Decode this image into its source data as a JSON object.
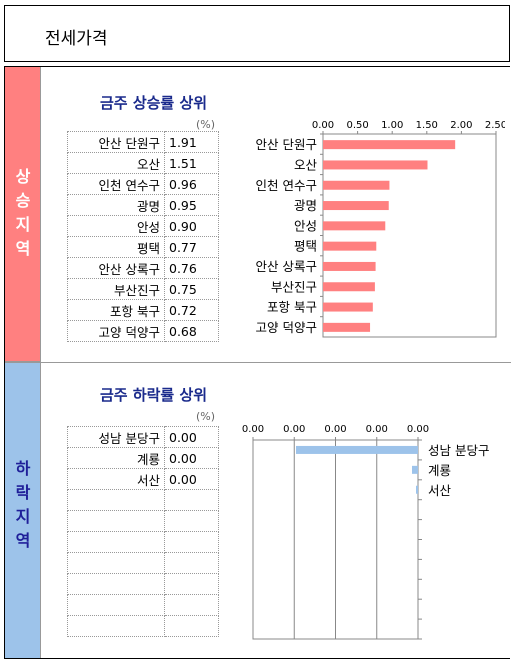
{
  "header": {
    "title": "전세가격"
  },
  "rise": {
    "side_label": "상승지역",
    "title": "금주 상승률 상위",
    "unit": "(%)",
    "rows": [
      {
        "name": "안산 단원구",
        "value": "1.91"
      },
      {
        "name": "오산",
        "value": "1.51"
      },
      {
        "name": "인천 연수구",
        "value": "0.96"
      },
      {
        "name": "광명",
        "value": "0.95"
      },
      {
        "name": "안성",
        "value": "0.90"
      },
      {
        "name": "평택",
        "value": "0.77"
      },
      {
        "name": "안산 상록구",
        "value": "0.76"
      },
      {
        "name": "부산진구",
        "value": "0.75"
      },
      {
        "name": "포항 북구",
        "value": "0.72"
      },
      {
        "name": "고양 덕양구",
        "value": "0.68"
      }
    ]
  },
  "fall": {
    "side_label": "하락지역",
    "title": "금주 하락률 상위",
    "unit": "(%)",
    "rows": [
      {
        "name": "성남 분당구",
        "value": "0.00"
      },
      {
        "name": "계룡",
        "value": "0.00"
      },
      {
        "name": "서산",
        "value": "0.00"
      },
      {
        "name": "",
        "value": ""
      },
      {
        "name": "",
        "value": ""
      },
      {
        "name": "",
        "value": ""
      },
      {
        "name": "",
        "value": ""
      },
      {
        "name": "",
        "value": ""
      },
      {
        "name": "",
        "value": ""
      },
      {
        "name": "",
        "value": ""
      }
    ]
  },
  "chart_data": [
    {
      "type": "bar",
      "orientation": "horizontal",
      "categories": [
        "안산 단원구",
        "오산",
        "인천 연수구",
        "광명",
        "안성",
        "평택",
        "안산 상록구",
        "부산진구",
        "포항 북구",
        "고양 덕양구"
      ],
      "values": [
        1.91,
        1.51,
        0.96,
        0.95,
        0.9,
        0.77,
        0.76,
        0.75,
        0.72,
        0.68
      ],
      "xlim": [
        0,
        2.5
      ],
      "ticks": [
        "0.00",
        "0.50",
        "1.00",
        "1.50",
        "2.00",
        "2.50"
      ],
      "tick_values": [
        0,
        0.5,
        1.0,
        1.5,
        2.0,
        2.5
      ],
      "color": "#ff8080",
      "axis": "top",
      "grid": false
    },
    {
      "type": "bar",
      "orientation": "horizontal",
      "categories": [
        "성남 분당구",
        "계룡",
        "서산"
      ],
      "values": [
        0.0,
        0.0,
        0.0
      ],
      "ticks": [
        "0.00",
        "0.00",
        "0.00",
        "0.00",
        "0.00"
      ],
      "color": "#9dc3ea",
      "axis": "top",
      "grid": true,
      "reversed": true
    }
  ]
}
